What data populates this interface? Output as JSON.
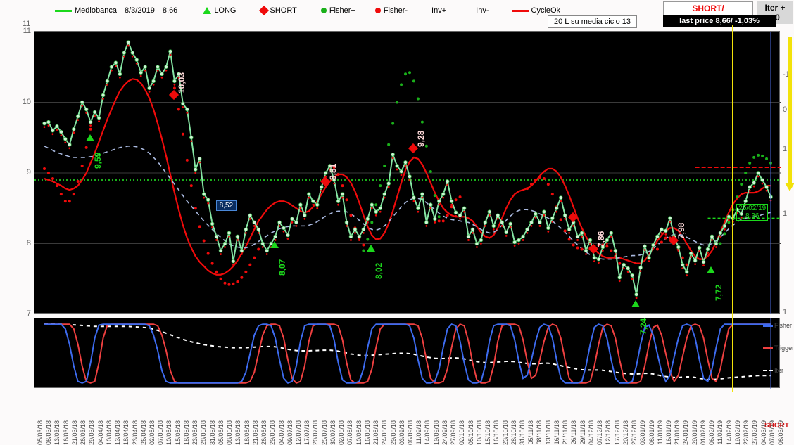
{
  "header": {
    "symbol": "Mediobanca",
    "date": "8/3/2019",
    "last": "8,66",
    "legend": {
      "long": "LONG",
      "short": "SHORT",
      "fisher_pos": "Fisher+",
      "fisher_neg": "Fisher-",
      "inv_pos": "Inv+",
      "inv_neg": "Inv-",
      "cycle": "CycleOk"
    }
  },
  "status": {
    "short_badge": "SHORT/",
    "iter_badge": "Iter + <0",
    "cycle_info": "20 L  su media ciclo 13",
    "last_price": "last price 8,66/  -1,03%",
    "bottom_short": "SHORT"
  },
  "date_box": {
    "d": "25/02/19",
    "p": "8,36"
  },
  "price_box_852": "8,52",
  "chart": {
    "type": "line",
    "bg": "#000000",
    "grid_color": "#3a3a3a",
    "price_color": "#86e6a4",
    "cycle_color": "#ef0b0b",
    "ma_color": "#a9b9df",
    "fisher_pos_color": "#1ab01a",
    "fisher_neg_color": "#ef0b0b",
    "long_marker_color": "#1cd81c",
    "short_marker_color": "#ef0b0b",
    "green_hline_color": "#1ab01a",
    "yellow": "#f2e20a",
    "ylim": [
      7,
      11
    ],
    "yticks": [
      7,
      8,
      9,
      10,
      11
    ],
    "y2lim": [
      -1,
      1
    ],
    "y2ticks": [
      -1,
      0,
      1,
      1,
      1
    ],
    "ytick_top": 11,
    "green_hline_y": 8.9,
    "red_hline_y": 8.9,
    "red_dash_y": 9.08,
    "price": [
      9.7,
      9.72,
      9.6,
      9.66,
      9.58,
      9.48,
      9.4,
      9.62,
      9.8,
      10.0,
      9.9,
      9.72,
      9.86,
      9.78,
      10.1,
      10.3,
      10.5,
      10.56,
      10.4,
      10.7,
      10.85,
      10.7,
      10.6,
      10.42,
      10.5,
      10.2,
      10.3,
      10.5,
      10.4,
      10.5,
      10.72,
      10.3,
      10.4,
      9.98,
      9.9,
      9.5,
      9.05,
      9.2,
      8.7,
      8.62,
      8.28,
      8.1,
      7.9,
      8.0,
      8.15,
      7.75,
      8.1,
      7.9,
      8.2,
      8.4,
      8.3,
      8.2,
      8.0,
      7.9,
      8.0,
      8.1,
      8.3,
      8.22,
      8.12,
      8.35,
      8.3,
      8.55,
      8.4,
      8.7,
      8.6,
      8.55,
      8.8,
      9.0,
      9.1,
      8.9,
      8.6,
      8.7,
      8.3,
      8.1,
      8.2,
      8.1,
      8.2,
      8.35,
      8.55,
      8.45,
      8.5,
      8.7,
      8.85,
      9.26,
      9.1,
      9.02,
      9.15,
      8.95,
      8.65,
      8.5,
      8.7,
      8.3,
      8.55,
      8.35,
      8.6,
      8.7,
      8.88,
      8.6,
      8.44,
      8.4,
      8.5,
      8.1,
      8.2,
      8.0,
      8.05,
      8.3,
      8.45,
      8.25,
      8.4,
      8.3,
      8.16,
      8.28,
      8.02,
      8.05,
      8.1,
      8.2,
      8.3,
      8.42,
      8.3,
      8.45,
      8.22,
      8.36,
      8.5,
      8.65,
      8.4,
      8.2,
      8.3,
      8.1,
      8.15,
      7.9,
      8.05,
      7.8,
      7.78,
      7.95,
      8.05,
      8.15,
      7.9,
      7.52,
      7.7,
      7.65,
      7.55,
      7.28,
      7.66,
      7.96,
      7.8,
      7.98,
      8.1,
      8.2,
      8.18,
      8.36,
      8.1,
      7.95,
      7.7,
      7.6,
      7.86,
      7.76,
      7.94,
      7.74,
      7.92,
      8.1,
      8.0,
      8.15,
      8.25,
      8.38,
      8.36,
      8.48,
      8.42,
      8.6,
      8.8,
      8.86,
      9.0,
      8.9,
      8.8,
      8.66
    ],
    "cycle": [
      8.92,
      8.9,
      8.88,
      8.85,
      8.82,
      8.78,
      8.76,
      8.78,
      8.82,
      8.9,
      9.0,
      9.14,
      9.28,
      9.44,
      9.6,
      9.76,
      9.9,
      10.04,
      10.16,
      10.24,
      10.3,
      10.33,
      10.32,
      10.27,
      10.18,
      10.06,
      9.9,
      9.7,
      9.48,
      9.24,
      8.98,
      8.72,
      8.48,
      8.26,
      8.08,
      7.94,
      7.82,
      7.74,
      7.68,
      7.62,
      7.58,
      7.56,
      7.56,
      7.58,
      7.62,
      7.68,
      7.76,
      7.86,
      7.96,
      8.08,
      8.2,
      8.32,
      8.4,
      8.48,
      8.54,
      8.58,
      8.6,
      8.6,
      8.58,
      8.54,
      8.5,
      8.46,
      8.44,
      8.46,
      8.52,
      8.6,
      8.7,
      8.8,
      8.88,
      8.94,
      8.98,
      8.98,
      8.94,
      8.86,
      8.74,
      8.58,
      8.4,
      8.24,
      8.12,
      8.06,
      8.07,
      8.15,
      8.28,
      8.46,
      8.66,
      8.86,
      9.04,
      9.16,
      9.22,
      9.2,
      9.12,
      9.0,
      8.86,
      8.72,
      8.6,
      8.5,
      8.44,
      8.4,
      8.38,
      8.38,
      8.38,
      8.36,
      8.32,
      8.24,
      8.16,
      8.1,
      8.08,
      8.12,
      8.22,
      8.36,
      8.5,
      8.62,
      8.7,
      8.74,
      8.76,
      8.78,
      8.82,
      8.88,
      8.96,
      9.02,
      9.06,
      9.06,
      9.02,
      8.94,
      8.82,
      8.68,
      8.52,
      8.36,
      8.22,
      8.1,
      8.0,
      7.92,
      7.86,
      7.82,
      7.8,
      7.8,
      7.8,
      7.8,
      7.78,
      7.76,
      7.74,
      7.72,
      7.72,
      7.76,
      7.84,
      7.94,
      8.04,
      8.12,
      8.18,
      8.22,
      8.22,
      8.18,
      8.1,
      8.0,
      7.9,
      7.82,
      7.78,
      7.78,
      7.82,
      7.9,
      8.02,
      8.16,
      8.3,
      8.44,
      8.56,
      8.64,
      8.7,
      8.72,
      8.72,
      8.72,
      8.74,
      8.78,
      8.82,
      8.82
    ],
    "ma": [
      9.38,
      9.35,
      9.32,
      9.29,
      9.27,
      9.25,
      9.23,
      9.22,
      9.22,
      9.22,
      9.22,
      9.23,
      9.24,
      9.26,
      9.28,
      9.3,
      9.32,
      9.34,
      9.36,
      9.37,
      9.38,
      9.38,
      9.37,
      9.35,
      9.32,
      9.28,
      9.22,
      9.16,
      9.08,
      9.0,
      8.92,
      8.84,
      8.76,
      8.68,
      8.6,
      8.53,
      8.46,
      8.39,
      8.32,
      8.26,
      8.2,
      8.14,
      8.09,
      8.04,
      8.0,
      7.97,
      7.95,
      7.94,
      7.94,
      7.96,
      7.99,
      8.03,
      8.07,
      8.11,
      8.15,
      8.18,
      8.21,
      8.23,
      8.24,
      8.25,
      8.25,
      8.25,
      8.25,
      8.26,
      8.28,
      8.31,
      8.35,
      8.39,
      8.42,
      8.45,
      8.46,
      8.46,
      8.45,
      8.42,
      8.38,
      8.33,
      8.28,
      8.23,
      8.2,
      8.19,
      8.21,
      8.25,
      8.31,
      8.38,
      8.45,
      8.52,
      8.58,
      8.62,
      8.64,
      8.64,
      8.62,
      8.58,
      8.53,
      8.48,
      8.43,
      8.39,
      8.36,
      8.34,
      8.33,
      8.32,
      8.31,
      8.3,
      8.27,
      8.24,
      8.2,
      8.17,
      8.15,
      8.16,
      8.2,
      8.26,
      8.33,
      8.39,
      8.44,
      8.47,
      8.48,
      8.48,
      8.47,
      8.45,
      8.42,
      8.39,
      8.36,
      8.32,
      8.27,
      8.22,
      8.16,
      8.1,
      8.04,
      7.98,
      7.93,
      7.88,
      7.84,
      7.81,
      7.79,
      7.78,
      7.78,
      7.78,
      7.79,
      7.8,
      7.81,
      7.82,
      7.83,
      7.83,
      7.84,
      7.86,
      7.89,
      7.93,
      7.98,
      8.03,
      8.07,
      8.11,
      8.13,
      8.13,
      8.12,
      8.09,
      8.06,
      8.03,
      8.0,
      7.98,
      7.98,
      8.0,
      8.04,
      8.09,
      8.15,
      8.21,
      8.26,
      8.31,
      8.34,
      8.36,
      8.37,
      8.38,
      8.39,
      8.41,
      8.43,
      8.44
    ],
    "fisher_pos": [
      null,
      null,
      null,
      null,
      null,
      null,
      null,
      null,
      null,
      null,
      null,
      null,
      null,
      null,
      null,
      null,
      null,
      null,
      null,
      null,
      null,
      null,
      null,
      null,
      null,
      null,
      null,
      null,
      null,
      null,
      null,
      null,
      null,
      null,
      null,
      null,
      null,
      null,
      null,
      null,
      null,
      null,
      null,
      null,
      null,
      null,
      null,
      null,
      null,
      null,
      null,
      null,
      null,
      null,
      null,
      null,
      null,
      null,
      null,
      null,
      null,
      null,
      null,
      null,
      null,
      null,
      null,
      null,
      null,
      null,
      null,
      null,
      null,
      null,
      null,
      null,
      7.9,
      8.06,
      8.3,
      8.55,
      8.82,
      9.1,
      9.4,
      9.7,
      10.0,
      10.25,
      10.4,
      10.42,
      10.3,
      10.05,
      9.72,
      9.38,
      9.02,
      8.68,
      8.38,
      null,
      null,
      null,
      null,
      null,
      null,
      null,
      null,
      null,
      null,
      null,
      null,
      null,
      null,
      null,
      null,
      null,
      null,
      null,
      null,
      null,
      null,
      null,
      null,
      null,
      null,
      null,
      null,
      null,
      null,
      null,
      null,
      null,
      null,
      null,
      null,
      null,
      null,
      null,
      null,
      null,
      null,
      null,
      null,
      null,
      null,
      null,
      null,
      null,
      null,
      null,
      null,
      null,
      null,
      null,
      null,
      null,
      null,
      null,
      null,
      null,
      null,
      null,
      null,
      null,
      null,
      8.0,
      8.14,
      8.3,
      8.48,
      8.66,
      8.84,
      9.0,
      9.14,
      9.22,
      9.25,
      9.24,
      9.2,
      9.14
    ],
    "fisher_neg": [
      9.06,
      9.0,
      8.92,
      8.82,
      8.7,
      8.6,
      8.6,
      8.7,
      8.88,
      9.1,
      9.36,
      9.62,
      null,
      null,
      null,
      null,
      null,
      null,
      null,
      null,
      null,
      null,
      null,
      null,
      null,
      null,
      null,
      null,
      null,
      null,
      null,
      10.2,
      9.9,
      9.55,
      9.18,
      8.82,
      8.5,
      8.24,
      8.04,
      7.86,
      7.72,
      7.6,
      7.5,
      7.44,
      7.42,
      7.43,
      7.46,
      7.52,
      7.6,
      7.7,
      7.8,
      7.92,
      null,
      null,
      null,
      null,
      null,
      null,
      null,
      null,
      null,
      null,
      null,
      null,
      null,
      null,
      null,
      null,
      null,
      9.08,
      8.98,
      8.82,
      8.62,
      8.4,
      8.22,
      8.08,
      7.98,
      null,
      null,
      null,
      null,
      null,
      null,
      null,
      null,
      null,
      null,
      null,
      null,
      null,
      null,
      null,
      null,
      null,
      8.32,
      8.32,
      8.4,
      8.52,
      8.62,
      8.66,
      null,
      null,
      null,
      null,
      null,
      null,
      null,
      null,
      null,
      null,
      null,
      null,
      null,
      null,
      null,
      8.78,
      8.84,
      8.9,
      8.94,
      8.92,
      8.84,
      8.7,
      8.52,
      8.34,
      8.18,
      8.06,
      7.98,
      7.94,
      7.92,
      7.92,
      7.94,
      7.96,
      7.98,
      7.98,
      7.96,
      7.9,
      7.82,
      7.72,
      null,
      null,
      null,
      null,
      null,
      null,
      null,
      null,
      7.92,
      8.02,
      8.08,
      8.08,
      8.02,
      7.92,
      7.8,
      7.7,
      null,
      null,
      null,
      null,
      null,
      null,
      null,
      null,
      null,
      null,
      null,
      null,
      null,
      null,
      null,
      null,
      null,
      null,
      null,
      null
    ],
    "long_markers": [
      {
        "i": 11,
        "y": 9.59,
        "label": "9,59"
      },
      {
        "i": 55,
        "y": 8.07,
        "label": "8,07"
      },
      {
        "i": 78,
        "y": 8.02,
        "label": "8,02"
      },
      {
        "i": 141,
        "y": 7.24,
        "label": "7,24"
      },
      {
        "i": 159,
        "y": 7.72,
        "label": "7,72"
      }
    ],
    "short_markers": [
      {
        "i": 31,
        "y": 10.03,
        "label": "10,03"
      },
      {
        "i": 67,
        "y": 8.81,
        "label": "8,81"
      },
      {
        "i": 88,
        "y": 9.28,
        "label": "9,28"
      },
      {
        "i": 126,
        "y": 8.3,
        "label": ""
      },
      {
        "i": 131,
        "y": 7.86,
        "label": "7,86"
      },
      {
        "i": 150,
        "y": 7.98,
        "label": "7,98"
      }
    ]
  },
  "sub": {
    "fisher_color": "#3d6bef",
    "trigger_color": "#ef4040",
    "iter_color": "#ffffff",
    "labels": {
      "fisher": "Fisher",
      "trigger": "Trigger",
      "iter": "Iter"
    },
    "fisher": [
      0.95,
      0.95,
      0.95,
      0.95,
      0.95,
      0.8,
      0.3,
      -0.4,
      -0.9,
      -0.95,
      -0.9,
      -0.3,
      0.5,
      0.92,
      0.95,
      0.95,
      0.95,
      0.95,
      0.95,
      0.95,
      0.95,
      0.95,
      0.95,
      0.95,
      0.95,
      0.9,
      0.6,
      0.1,
      -0.55,
      -0.9,
      -0.95,
      -0.95,
      -0.95,
      -0.95,
      -0.95,
      -0.95,
      -0.95,
      -0.95,
      -0.95,
      -0.95,
      -0.95,
      -0.95,
      -0.95,
      -0.95,
      -0.95,
      -0.95,
      -0.95,
      -0.9,
      -0.6,
      0.0,
      0.6,
      0.9,
      0.95,
      0.95,
      0.9,
      0.5,
      -0.2,
      -0.8,
      -0.95,
      -0.9,
      -0.4,
      0.4,
      0.9,
      0.95,
      0.95,
      0.95,
      0.95,
      0.95,
      0.9,
      0.45,
      -0.3,
      -0.85,
      -0.95,
      -0.95,
      -0.95,
      -0.9,
      -0.5,
      0.2,
      0.8,
      0.95,
      0.95,
      0.95,
      0.95,
      0.95,
      0.95,
      0.95,
      0.95,
      0.9,
      0.5,
      -0.2,
      -0.8,
      -0.95,
      -0.95,
      -0.9,
      -0.5,
      0.2,
      0.8,
      0.95,
      0.9,
      0.4,
      -0.3,
      -0.85,
      -0.95,
      -0.95,
      -0.9,
      -0.4,
      0.4,
      0.9,
      0.95,
      0.95,
      0.95,
      0.9,
      0.45,
      -0.25,
      -0.8,
      -0.7,
      -0.2,
      0.4,
      0.85,
      0.95,
      0.9,
      0.5,
      -0.2,
      -0.8,
      -0.95,
      -0.95,
      -0.95,
      -0.95,
      -0.9,
      -0.4,
      0.3,
      0.85,
      0.95,
      0.9,
      0.5,
      -0.2,
      -0.8,
      -0.95,
      -0.95,
      -0.95,
      -0.9,
      -0.4,
      0.3,
      0.85,
      0.92,
      0.6,
      0.0,
      -0.6,
      -0.9,
      -0.7,
      -0.1,
      0.5,
      0.9,
      0.95,
      0.9,
      0.5,
      -0.2,
      -0.8,
      -0.9,
      -0.5,
      0.2,
      0.8,
      0.95,
      0.95,
      0.95,
      0.95,
      0.95,
      0.95,
      0.95,
      0.95,
      0.95,
      0.95,
      0.95,
      0.95
    ],
    "iter": [
      0.96,
      0.96,
      0.96,
      0.95,
      0.95,
      0.94,
      0.94,
      0.93,
      0.92,
      0.91,
      0.9,
      0.89,
      0.88,
      0.88,
      0.88,
      0.88,
      0.88,
      0.88,
      0.88,
      0.88,
      0.88,
      0.87,
      0.86,
      0.85,
      0.84,
      0.82,
      0.79,
      0.75,
      0.71,
      0.66,
      0.61,
      0.56,
      0.51,
      0.46,
      0.42,
      0.38,
      0.35,
      0.32,
      0.29,
      0.27,
      0.25,
      0.23,
      0.22,
      0.21,
      0.2,
      0.19,
      0.19,
      0.19,
      0.19,
      0.2,
      0.21,
      0.22,
      0.23,
      0.23,
      0.23,
      0.22,
      0.2,
      0.17,
      0.14,
      0.12,
      0.1,
      0.09,
      0.09,
      0.09,
      0.1,
      0.1,
      0.11,
      0.11,
      0.11,
      0.1,
      0.08,
      0.05,
      0.02,
      -0.01,
      -0.03,
      -0.05,
      -0.06,
      -0.06,
      -0.05,
      -0.04,
      -0.03,
      -0.02,
      -0.01,
      0.0,
      0.01,
      0.01,
      0.01,
      0.0,
      -0.02,
      -0.05,
      -0.08,
      -0.11,
      -0.13,
      -0.15,
      -0.16,
      -0.16,
      -0.15,
      -0.14,
      -0.14,
      -0.15,
      -0.17,
      -0.2,
      -0.23,
      -0.26,
      -0.28,
      -0.29,
      -0.29,
      -0.28,
      -0.27,
      -0.26,
      -0.25,
      -0.25,
      -0.26,
      -0.28,
      -0.3,
      -0.32,
      -0.33,
      -0.33,
      -0.32,
      -0.31,
      -0.31,
      -0.33,
      -0.36,
      -0.39,
      -0.42,
      -0.45,
      -0.48,
      -0.5,
      -0.52,
      -0.53,
      -0.53,
      -0.53,
      -0.53,
      -0.54,
      -0.56,
      -0.58,
      -0.6,
      -0.62,
      -0.64,
      -0.65,
      -0.66,
      -0.66,
      -0.65,
      -0.64,
      -0.64,
      -0.66,
      -0.69,
      -0.72,
      -0.74,
      -0.76,
      -0.77,
      -0.77,
      -0.76,
      -0.75,
      -0.75,
      -0.77,
      -0.8,
      -0.82,
      -0.84,
      -0.84,
      -0.83,
      -0.82,
      -0.8,
      -0.78,
      -0.77,
      -0.76,
      -0.75,
      -0.74,
      -0.73,
      -0.72,
      -0.71,
      -0.71,
      -0.71,
      -0.71
    ]
  },
  "xaxis": {
    "labels": [
      "05/03/18",
      "08/03/18",
      "13/03/18",
      "16/03/18",
      "21/03/18",
      "26/03/18",
      "29/03/18",
      "04/04/18",
      "10/04/18",
      "13/04/18",
      "18/04/18",
      "23/04/18",
      "26/04/18",
      "02/05/18",
      "07/05/18",
      "10/05/18",
      "15/05/18",
      "18/05/18",
      "23/05/18",
      "28/05/18",
      "31/05/18",
      "05/06/18",
      "08/06/18",
      "13/06/18",
      "18/06/18",
      "21/06/18",
      "26/06/18",
      "29/06/18",
      "04/07/18",
      "09/07/18",
      "12/07/18",
      "17/07/18",
      "20/07/18",
      "25/07/18",
      "30/07/18",
      "02/08/18",
      "07/08/18",
      "10/08/18",
      "16/08/18",
      "21/08/18",
      "24/08/18",
      "29/08/18",
      "03/09/18",
      "06/09/18",
      "11/09/18",
      "14/09/18",
      "19/09/18",
      "24/09/18",
      "27/09/18",
      "02/10/18",
      "05/10/18",
      "10/10/18",
      "15/10/18",
      "16/10/18",
      "23/10/18",
      "28/10/18",
      "31/10/18",
      "05/11/18",
      "08/11/18",
      "13/11/18",
      "16/11/18",
      "21/11/18",
      "26/11/18",
      "29/11/18",
      "04/12/18",
      "07/12/18",
      "12/12/18",
      "17/12/18",
      "20/12/18",
      "27/12/18",
      "03/01/19",
      "08/01/19",
      "11/01/19",
      "16/01/19",
      "21/01/19",
      "24/01/19",
      "29/01/19",
      "01/02/19",
      "06/02/19",
      "11/02/19",
      "14/02/19",
      "19/02/19",
      "22/02/19",
      "27/02/19",
      "04/03/19",
      "07/03/19",
      "08/03/19"
    ]
  }
}
